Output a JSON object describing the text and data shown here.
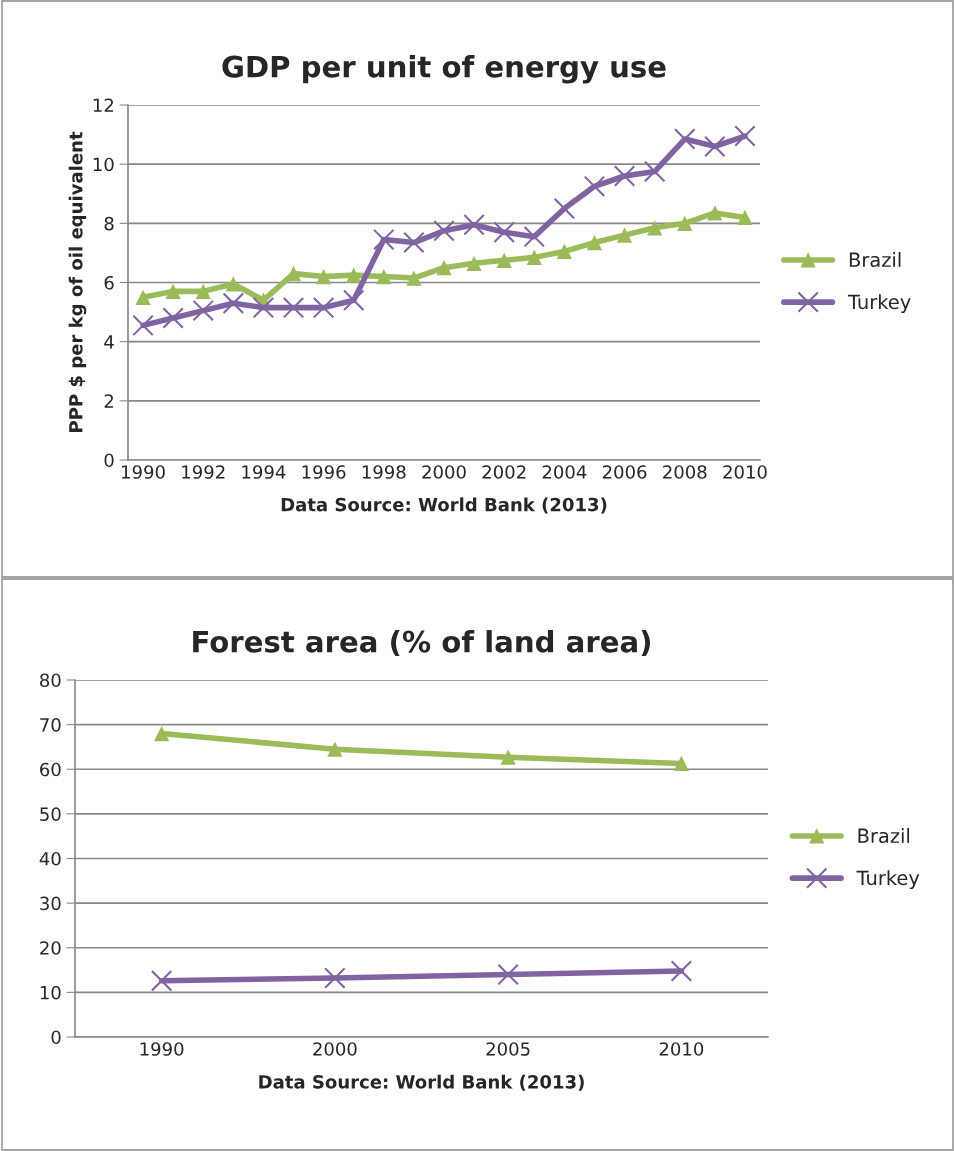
{
  "chart_data": [
    {
      "type": "line",
      "title": "GDP per unit of energy use",
      "ylabel": "PPP $ per kg of oil equivalent",
      "annotations": [
        "Data Source: World Bank (2013)"
      ],
      "categories": [
        "1990",
        null,
        "1992",
        null,
        "1994",
        null,
        "1996",
        null,
        "1998",
        null,
        "2000",
        null,
        "2002",
        null,
        "2004",
        null,
        "2006",
        null,
        "2008",
        null,
        "2010"
      ],
      "series": [
        {
          "name": "Brazil",
          "color": "#9bbb59",
          "marker": "triangle",
          "values": [
            5.5,
            5.7,
            5.7,
            5.95,
            5.4,
            6.3,
            6.2,
            6.25,
            6.2,
            6.15,
            6.5,
            6.65,
            6.75,
            6.85,
            7.05,
            7.35,
            7.6,
            7.85,
            8.0,
            8.35,
            8.2
          ]
        },
        {
          "name": "Turkey",
          "color": "#8064a2",
          "marker": "cross",
          "values": [
            4.55,
            4.8,
            5.05,
            5.3,
            5.15,
            5.15,
            5.15,
            5.4,
            7.45,
            7.35,
            7.75,
            7.95,
            7.7,
            7.55,
            8.5,
            9.25,
            9.6,
            9.75,
            10.85,
            10.6,
            10.95
          ]
        }
      ],
      "ylim": [
        0,
        12
      ],
      "yticks": [
        0,
        2,
        4,
        6,
        8,
        10,
        12
      ],
      "grid": "y",
      "legend": "right"
    },
    {
      "type": "line",
      "title": "Forest area (% of land area)",
      "annotations": [
        "Data Source: World Bank (2013)"
      ],
      "categories": [
        "1990",
        "2000",
        "2005",
        "2010"
      ],
      "series": [
        {
          "name": "Brazil",
          "color": "#9bbb59",
          "marker": "triangle",
          "values": [
            68,
            64.5,
            62.7,
            61.3
          ]
        },
        {
          "name": "Turkey",
          "color": "#8064a2",
          "marker": "cross",
          "values": [
            12.6,
            13.2,
            14,
            14.8
          ]
        }
      ],
      "ylim": [
        0,
        80
      ],
      "yticks": [
        0,
        10,
        20,
        30,
        40,
        50,
        60,
        70,
        80
      ],
      "grid": "y",
      "legend": "right"
    }
  ]
}
